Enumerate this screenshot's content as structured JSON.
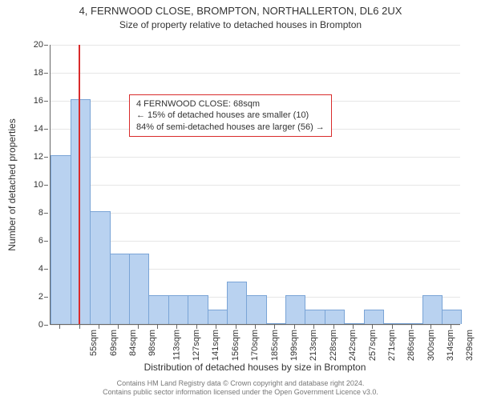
{
  "title": "4, FERNWOOD CLOSE, BROMPTON, NORTHALLERTON, DL6 2UX",
  "subtitle": "Size of property relative to detached houses in Brompton",
  "y_axis": {
    "label": "Number of detached properties",
    "min": 0,
    "max": 20,
    "tick_step": 2,
    "label_fontsize": 12,
    "tick_fontsize": 11
  },
  "x_axis": {
    "label": "Distribution of detached houses by size in Brompton",
    "labels": [
      "55sqm",
      "69sqm",
      "84sqm",
      "98sqm",
      "113sqm",
      "127sqm",
      "141sqm",
      "156sqm",
      "170sqm",
      "185sqm",
      "199sqm",
      "213sqm",
      "228sqm",
      "242sqm",
      "257sqm",
      "271sqm",
      "286sqm",
      "300sqm",
      "314sqm",
      "329sqm",
      "343sqm"
    ],
    "label_fontsize": 12,
    "tick_fontsize": 11
  },
  "histogram": {
    "type": "histogram",
    "values": [
      12,
      16,
      8,
      5,
      5,
      2,
      2,
      2,
      1,
      3,
      2,
      0,
      2,
      1,
      1,
      0,
      1,
      0,
      0,
      2,
      1
    ],
    "bar_color": "#b9d2f0",
    "bar_border_color": "#7aa4d6",
    "bar_width_ratio": 0.96,
    "grid_color": "#e6e6e6",
    "background_color": "#ffffff"
  },
  "marker": {
    "position_sqm": 68,
    "color": "#d92b2b"
  },
  "annotation": {
    "border_color": "#d92b2b",
    "lines": [
      "4 FERNWOOD CLOSE: 68sqm",
      "← 15% of detached houses are smaller (10)",
      "84% of semi-detached houses are larger (56) →"
    ]
  },
  "footer": {
    "line1": "Contains HM Land Registry data © Crown copyright and database right 2024.",
    "line2": "Contains public sector information licensed under the Open Government Licence v3.0.",
    "color": "#777777"
  }
}
